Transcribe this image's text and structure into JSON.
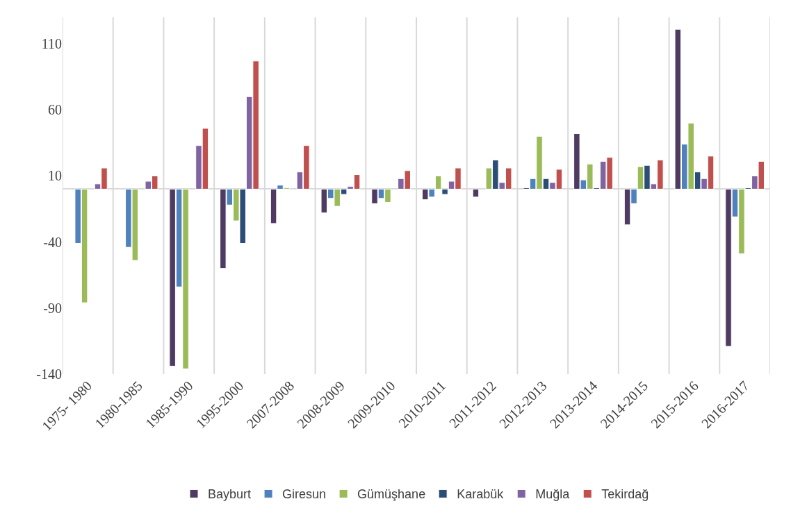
{
  "chart_data": {
    "type": "bar",
    "categories": [
      "1975- 1980",
      "1980-1985",
      "1985-1990",
      "1995-2000",
      "2007-2008",
      "2008-2009",
      "2009-2010",
      "2010-2011",
      "2011-2012",
      "2012-2013",
      "2013-2014",
      "2014-2015",
      "2015-2016",
      "2016-2017"
    ],
    "series": [
      {
        "name": "Bayburt",
        "color": "#4f3b62",
        "values": [
          null,
          null,
          -134,
          -60,
          -26,
          -18,
          -11,
          -8,
          -6,
          1,
          42,
          -27,
          121,
          -119
        ]
      },
      {
        "name": "Giresun",
        "color": "#4f81bd",
        "values": [
          -41,
          -44,
          -74,
          -12,
          3,
          -7,
          -7,
          -6,
          null,
          8,
          7,
          -11,
          34,
          -21
        ]
      },
      {
        "name": "Gümüşhane",
        "color": "#9bbb59",
        "values": [
          -86,
          -54,
          -136,
          -24,
          1,
          -13,
          -10,
          10,
          16,
          40,
          19,
          17,
          50,
          -49
        ]
      },
      {
        "name": "Karabük",
        "color": "#2c4d75",
        "values": [
          null,
          null,
          null,
          -41,
          null,
          -4,
          null,
          -4,
          22,
          8,
          1,
          18,
          13,
          1
        ]
      },
      {
        "name": "Muğla",
        "color": "#8064a2",
        "values": [
          4,
          6,
          33,
          70,
          13,
          2,
          8,
          6,
          5,
          5,
          21,
          4,
          8,
          10
        ]
      },
      {
        "name": "Tekirdağ",
        "color": "#c0504d",
        "values": [
          16,
          10,
          46,
          97,
          33,
          11,
          14,
          16,
          16,
          15,
          24,
          22,
          25,
          21
        ]
      }
    ],
    "ylim": [
      -140,
      130
    ],
    "yticks": [
      -140,
      -90,
      -40,
      10,
      60,
      110
    ],
    "grid": "x",
    "legend": "bottom"
  }
}
